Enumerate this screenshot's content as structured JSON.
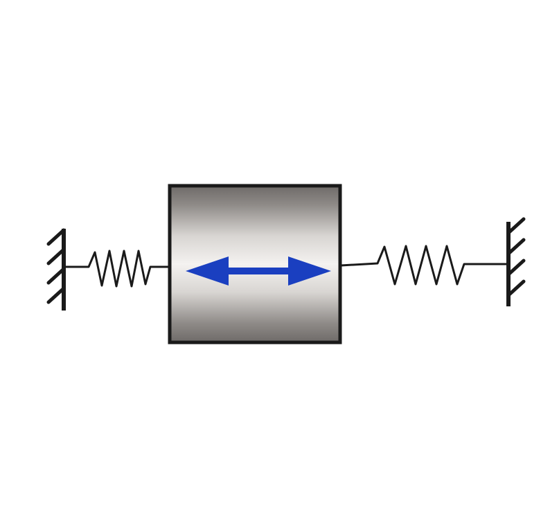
{
  "diagram": {
    "kind": "spring-mass-spring",
    "elements": [
      {
        "name": "left-wall",
        "type": "fixed-support"
      },
      {
        "name": "left-spring",
        "type": "spring"
      },
      {
        "name": "mass-block",
        "type": "mass"
      },
      {
        "name": "motion-arrow",
        "type": "double-headed-arrow"
      },
      {
        "name": "right-spring",
        "type": "spring"
      },
      {
        "name": "right-wall",
        "type": "fixed-support"
      }
    ],
    "colors": {
      "background": "#ffffff",
      "line": "#1a1a1a",
      "arrow": "#1a3fc0",
      "mass_light": "#f4f2f0",
      "mass_dark": "#6e6a68"
    }
  }
}
